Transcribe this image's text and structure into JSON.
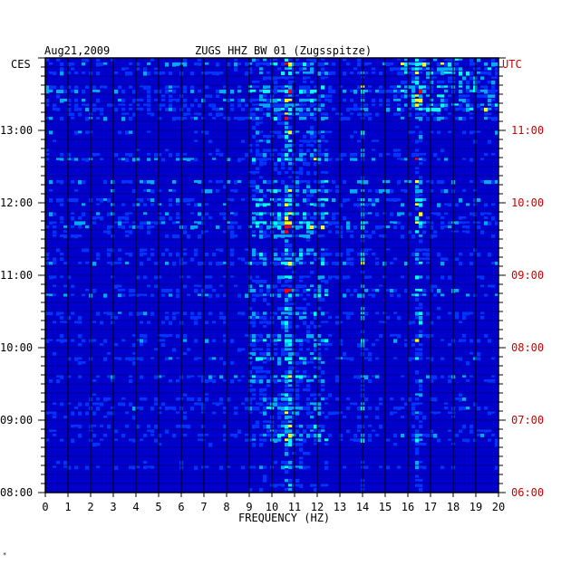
{
  "header": {
    "date": "Aug21,2009",
    "station": "ZUGS HHZ BW 01 (Zugsspitze)",
    "left_zone": "CES",
    "right_zone": "UTC"
  },
  "chart_data": {
    "type": "heatmap",
    "title": "ZUGS HHZ BW 01 (Zugsspitze)",
    "xlabel": "FREQUENCY (HZ)",
    "x_ticks": [
      "0",
      "1",
      "2",
      "3",
      "4",
      "5",
      "6",
      "7",
      "8",
      "9",
      "10",
      "11",
      "12",
      "13",
      "14",
      "15",
      "16",
      "17",
      "18",
      "19",
      "20"
    ],
    "xlim": [
      0,
      20
    ],
    "left_time_labels": [
      "13:00",
      "12:00",
      "11:00",
      "10:00",
      "09:00",
      "08:00"
    ],
    "right_time_labels": [
      "11:00",
      "10:00",
      "09:00",
      "08:00",
      "07:00",
      "06:00"
    ],
    "time_range_local": [
      "08:00",
      "13:~ 40"
    ],
    "colormap": [
      "#00007f",
      "#0000cc",
      "#0033ff",
      "#00aaff",
      "#00ffff",
      "#ffff00",
      "#ff0000"
    ],
    "grid": true,
    "hot_bands_hz": [
      {
        "from": 9,
        "to": 12.5,
        "note": "broad energy"
      },
      {
        "from": 10.5,
        "to": 10.8,
        "note": "persistent line"
      },
      {
        "from": 13.9,
        "to": 14.0,
        "note": "persistent line"
      },
      {
        "from": 16.3,
        "to": 16.6,
        "note": "persistent line"
      }
    ]
  },
  "colors": {
    "frame": "#000000",
    "right_axis": "#cc0000",
    "background": "#ffffff"
  }
}
